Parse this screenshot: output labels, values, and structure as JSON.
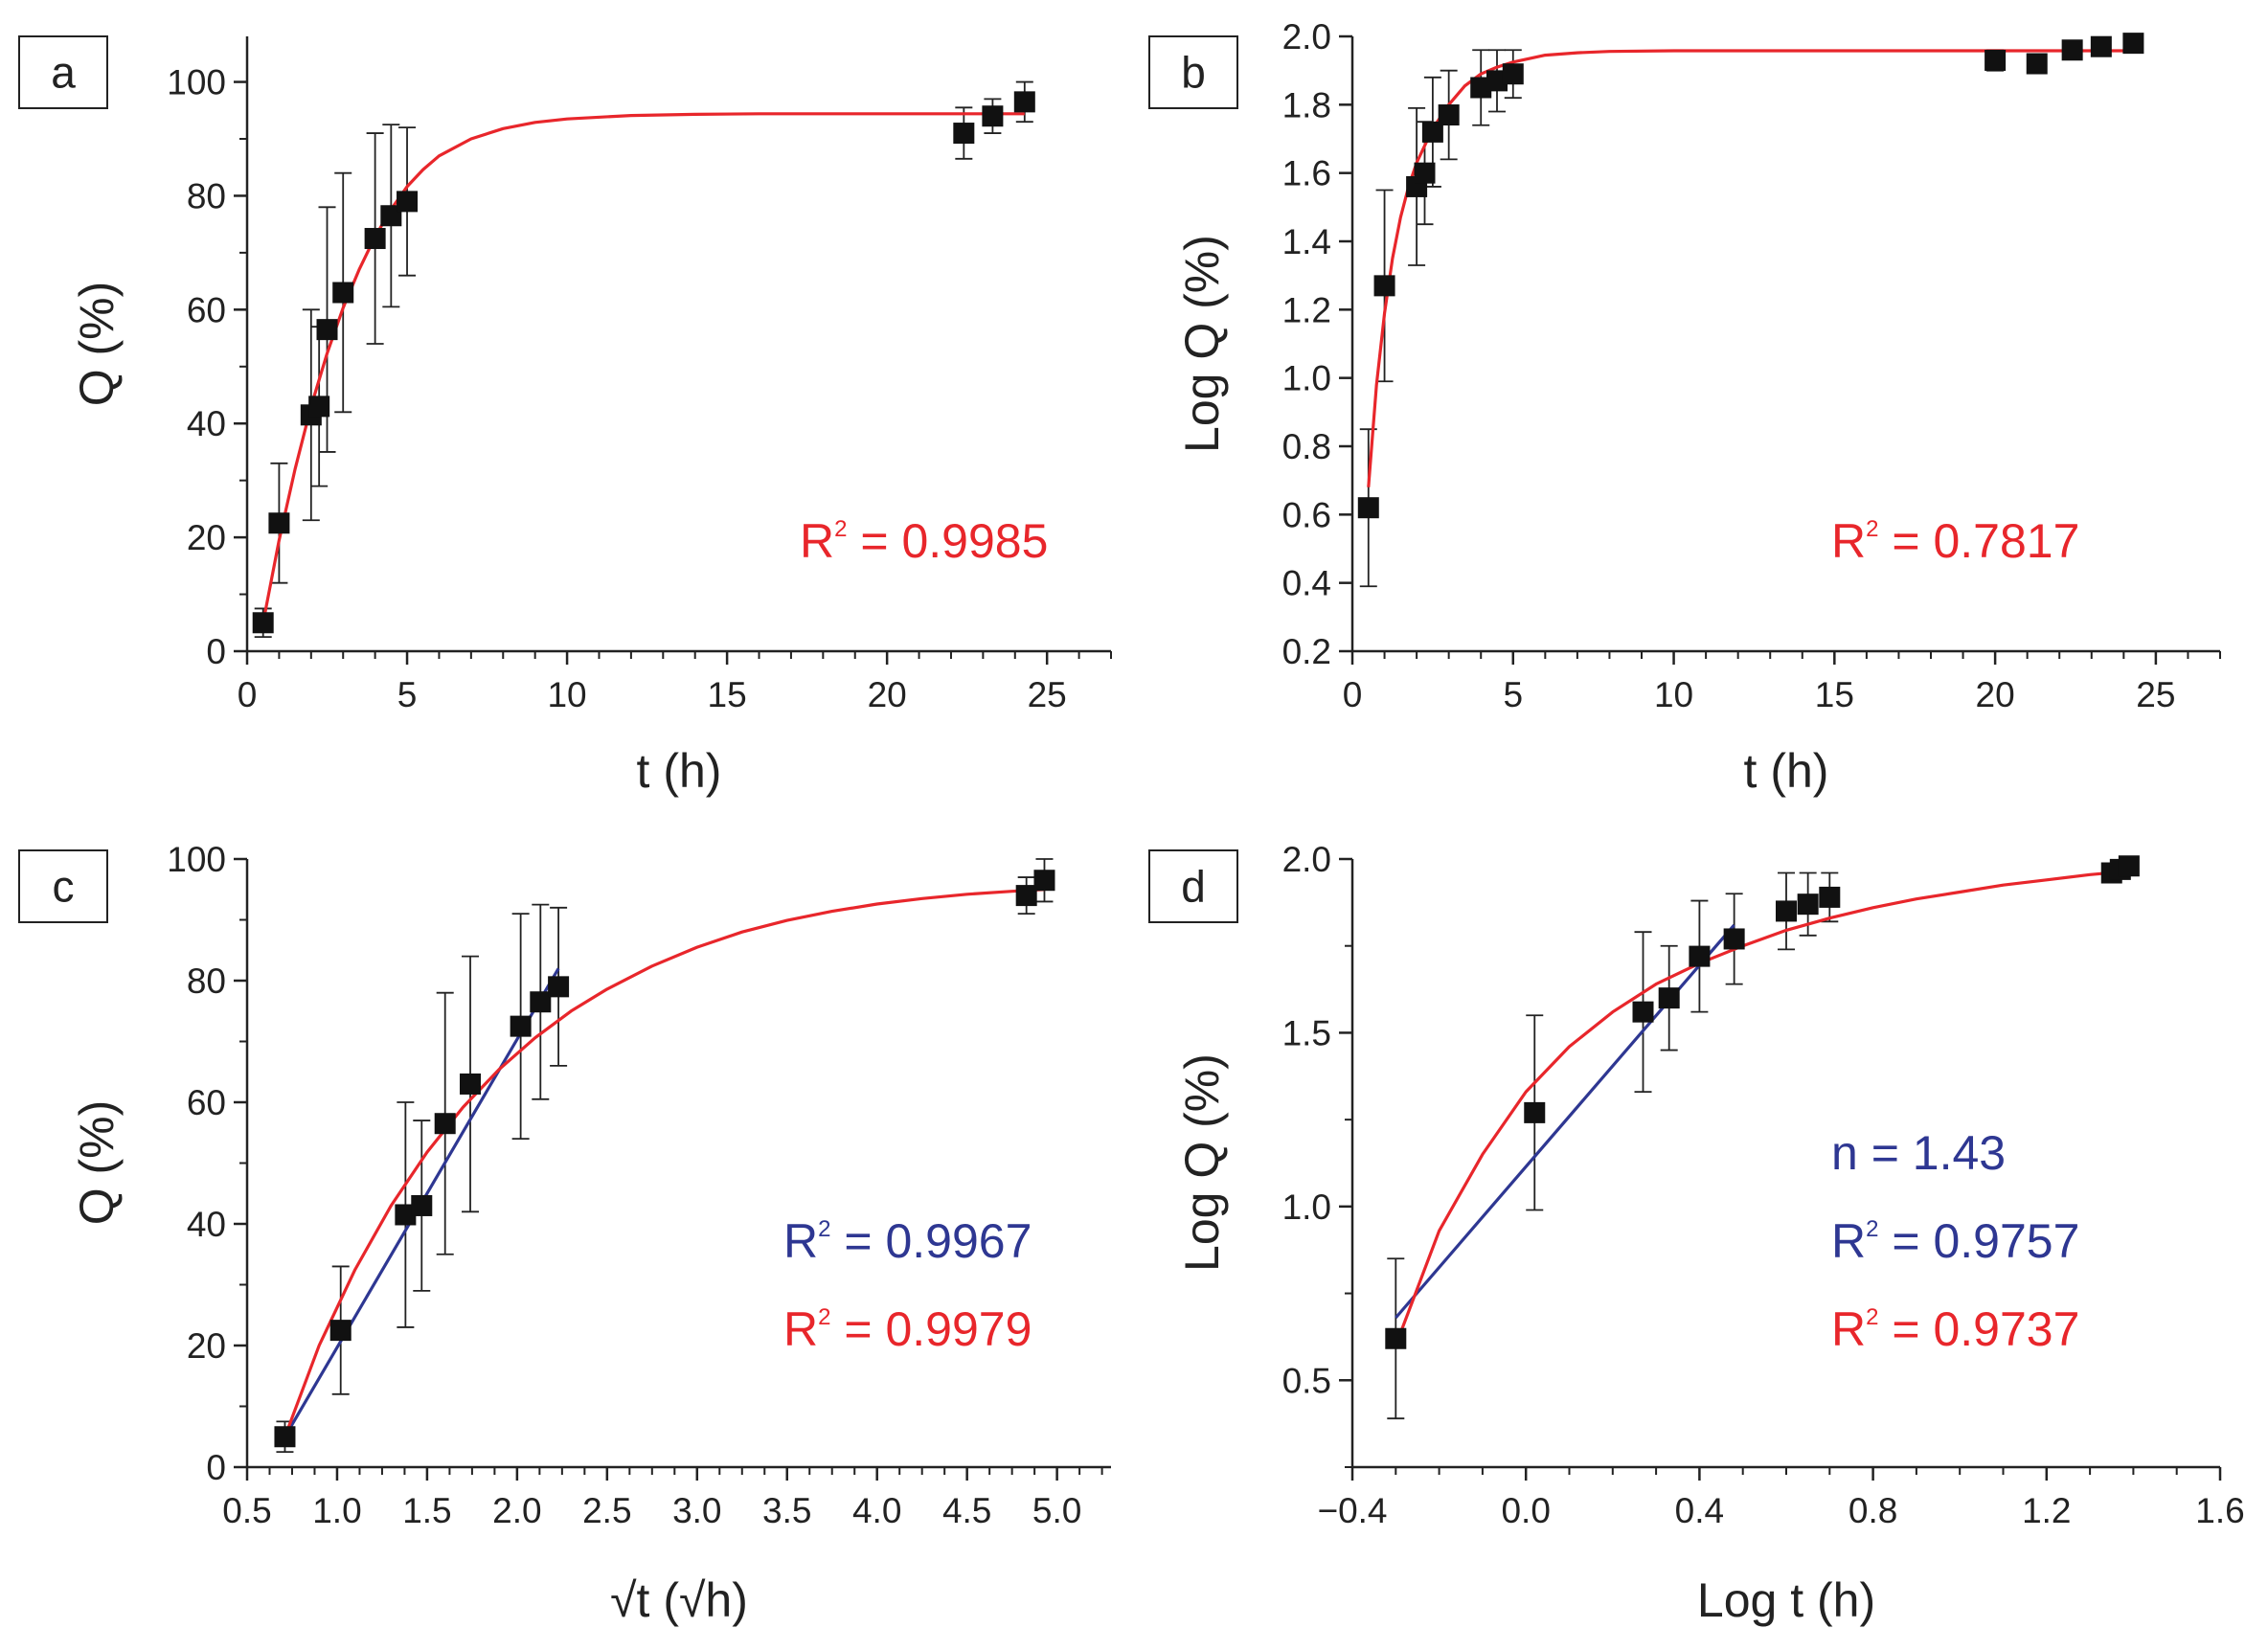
{
  "chart_data": [
    {
      "type": "scatter",
      "panel_label": "a",
      "xlabel": "t (h)",
      "ylabel": "Q (%)",
      "xlim": [
        0,
        27
      ],
      "ylim": [
        0,
        108
      ],
      "xticks": [
        0,
        5,
        10,
        15,
        20,
        25
      ],
      "yticks": [
        0,
        20,
        40,
        60,
        80,
        100
      ],
      "xtick_labels": [
        "0",
        "5",
        "10",
        "15",
        "20",
        "25"
      ],
      "ytick_labels": [
        "0",
        "20",
        "40",
        "60",
        "80",
        "100"
      ],
      "points": [
        {
          "x": 0.5,
          "y": 5,
          "err": 2.5
        },
        {
          "x": 1,
          "y": 22.5,
          "err": 10.5
        },
        {
          "x": 2,
          "y": 41.5,
          "err": 18.5
        },
        {
          "x": 2.25,
          "y": 43,
          "err": 14
        },
        {
          "x": 2.5,
          "y": 56.5,
          "err": 21.5
        },
        {
          "x": 3,
          "y": 63,
          "err": 21
        },
        {
          "x": 4,
          "y": 72.5,
          "err": 18.5
        },
        {
          "x": 4.5,
          "y": 76.5,
          "err": 16
        },
        {
          "x": 5,
          "y": 79,
          "err": 13
        },
        {
          "x": 22.4,
          "y": 91,
          "err": 4.5
        },
        {
          "x": 23.3,
          "y": 94,
          "err": 3
        },
        {
          "x": 24.3,
          "y": 96.5,
          "err": 3.5
        }
      ],
      "fit_curves": [
        {
          "name": "fit",
          "color": "#e8262b",
          "x": [
            0.5,
            1,
            1.5,
            2,
            2.5,
            3,
            3.5,
            4,
            4.5,
            5,
            5.5,
            6,
            7,
            8,
            9,
            10,
            12,
            14,
            16,
            18,
            20,
            22,
            24.3
          ],
          "y": [
            5,
            19.5,
            32,
            43,
            52.3,
            60.3,
            67,
            72.8,
            77.6,
            81.6,
            84.6,
            87,
            90,
            91.8,
            92.9,
            93.5,
            94.1,
            94.3,
            94.4,
            94.4,
            94.4,
            94.4,
            94.4
          ]
        }
      ],
      "annotations": [
        {
          "label": "R",
          "sup": "2",
          "text": " = 0.9985",
          "color": "#e8262b"
        }
      ]
    },
    {
      "type": "scatter",
      "panel_label": "b",
      "xlabel": "t (h)",
      "ylabel": "Log Q (%)",
      "xlim": [
        0,
        27
      ],
      "ylim": [
        0.2,
        2.0
      ],
      "xticks": [
        0,
        5,
        10,
        15,
        20,
        25
      ],
      "yticks": [
        0.2,
        0.4,
        0.6,
        0.8,
        1.0,
        1.2,
        1.4,
        1.6,
        1.8,
        2.0
      ],
      "xtick_labels": [
        "0",
        "5",
        "10",
        "15",
        "20",
        "25"
      ],
      "ytick_labels": [
        "0.2",
        "0.4",
        "0.6",
        "0.8",
        "1.0",
        "1.2",
        "1.4",
        "1.6",
        "1.8",
        "2.0"
      ],
      "points": [
        {
          "x": 0.5,
          "y": 0.62,
          "err": 0.23
        },
        {
          "x": 1,
          "y": 1.27,
          "err": 0.28
        },
        {
          "x": 2,
          "y": 1.56,
          "err": 0.23
        },
        {
          "x": 2.25,
          "y": 1.6,
          "err": 0.15
        },
        {
          "x": 2.5,
          "y": 1.72,
          "err": 0.16
        },
        {
          "x": 3,
          "y": 1.77,
          "err": 0.13
        },
        {
          "x": 4,
          "y": 1.85,
          "err": 0.11
        },
        {
          "x": 4.5,
          "y": 1.87,
          "err": 0.09
        },
        {
          "x": 5,
          "y": 1.89,
          "err": 0.07
        },
        {
          "x": 20,
          "y": 1.93,
          "err": 0.03
        },
        {
          "x": 21.3,
          "y": 1.92,
          "err": 0.02
        },
        {
          "x": 22.4,
          "y": 1.96,
          "err": 0.02
        },
        {
          "x": 23.3,
          "y": 1.97,
          "err": 0.01
        },
        {
          "x": 24.3,
          "y": 1.98,
          "err": 0.01
        }
      ],
      "fit_curves": [
        {
          "name": "fit",
          "color": "#e8262b",
          "x": [
            0.5,
            0.75,
            1,
            1.25,
            1.5,
            1.75,
            2,
            2.5,
            3,
            3.5,
            4,
            4.5,
            5,
            6,
            7,
            8,
            10,
            14,
            18,
            22,
            24.3
          ],
          "y": [
            0.68,
            0.98,
            1.19,
            1.35,
            1.47,
            1.56,
            1.63,
            1.73,
            1.8,
            1.855,
            1.89,
            1.91,
            1.925,
            1.945,
            1.952,
            1.956,
            1.958,
            1.958,
            1.958,
            1.958,
            1.958
          ]
        }
      ],
      "annotations": [
        {
          "label": "R",
          "sup": "2",
          "text": " = 0.7817",
          "color": "#e8262b"
        }
      ]
    },
    {
      "type": "scatter",
      "panel_label": "c",
      "xlabel": "√t (√h)",
      "ylabel": "Q (%)",
      "xlim": [
        0.5,
        5.3
      ],
      "ylim": [
        0,
        100
      ],
      "xticks": [
        0.5,
        1.0,
        1.5,
        2.0,
        2.5,
        3.0,
        3.5,
        4.0,
        4.5,
        5.0
      ],
      "yticks": [
        0,
        20,
        40,
        60,
        80,
        100
      ],
      "xtick_labels": [
        "0.5",
        "1.0",
        "1.5",
        "2.0",
        "2.5",
        "3.0",
        "3.5",
        "4.0",
        "4.5",
        "5.0"
      ],
      "ytick_labels": [
        "0",
        "20",
        "40",
        "60",
        "80",
        "100"
      ],
      "points": [
        {
          "x": 0.71,
          "y": 5,
          "err": 2.5
        },
        {
          "x": 1.02,
          "y": 22.5,
          "err": 10.5
        },
        {
          "x": 1.38,
          "y": 41.5,
          "err": 18.5
        },
        {
          "x": 1.47,
          "y": 43,
          "err": 14
        },
        {
          "x": 1.6,
          "y": 56.5,
          "err": 21.5
        },
        {
          "x": 1.74,
          "y": 63,
          "err": 21
        },
        {
          "x": 2.02,
          "y": 72.5,
          "err": 18.5
        },
        {
          "x": 2.13,
          "y": 76.5,
          "err": 16
        },
        {
          "x": 2.23,
          "y": 79,
          "err": 13
        },
        {
          "x": 4.83,
          "y": 94,
          "err": 3
        },
        {
          "x": 4.93,
          "y": 96.5,
          "err": 3.5
        }
      ],
      "fit_curves": [
        {
          "name": "linear fit",
          "color": "#2e3792",
          "x": [
            0.71,
            2.23
          ],
          "y": [
            5,
            82
          ]
        },
        {
          "name": "fit",
          "color": "#e8262b",
          "x": [
            0.71,
            0.9,
            1.1,
            1.3,
            1.5,
            1.7,
            1.9,
            2.1,
            2.3,
            2.5,
            2.75,
            3.0,
            3.25,
            3.5,
            3.75,
            4.0,
            4.25,
            4.5,
            4.75,
            4.93
          ],
          "y": [
            5,
            20,
            32.5,
            43,
            51.8,
            59.2,
            65.4,
            70.6,
            75,
            78.6,
            82.4,
            85.5,
            88,
            89.9,
            91.4,
            92.6,
            93.5,
            94.2,
            94.7,
            95
          ]
        }
      ],
      "annotations": [
        {
          "label": "R",
          "sup": "2",
          "text": " = 0.9967",
          "color": "#2e3792"
        },
        {
          "label": "R",
          "sup": "2",
          "text": " = 0.9979",
          "color": "#e8262b"
        }
      ]
    },
    {
      "type": "scatter",
      "panel_label": "d",
      "xlabel": "Log t (h)",
      "ylabel": "Log Q (%)",
      "xlim": [
        -0.4,
        1.6
      ],
      "ylim": [
        0.25,
        2.0
      ],
      "xticks": [
        -0.4,
        0.0,
        0.4,
        0.8,
        1.2,
        1.6
      ],
      "yticks": [
        0.5,
        1.0,
        1.5,
        2.0
      ],
      "xtick_labels": [
        "−0.4",
        "0.0",
        "0.4",
        "0.8",
        "1.2",
        "1.6"
      ],
      "ytick_labels": [
        "0.5",
        "1.0",
        "1.5",
        "2.0"
      ],
      "points": [
        {
          "x": -0.3,
          "y": 0.62,
          "err": 0.23
        },
        {
          "x": 0.02,
          "y": 1.27,
          "err": 0.28
        },
        {
          "x": 0.27,
          "y": 1.56,
          "err": 0.23
        },
        {
          "x": 0.33,
          "y": 1.6,
          "err": 0.15
        },
        {
          "x": 0.4,
          "y": 1.72,
          "err": 0.16
        },
        {
          "x": 0.48,
          "y": 1.77,
          "err": 0.13
        },
        {
          "x": 0.6,
          "y": 1.85,
          "err": 0.11
        },
        {
          "x": 0.65,
          "y": 1.87,
          "err": 0.09
        },
        {
          "x": 0.7,
          "y": 1.89,
          "err": 0.07
        },
        {
          "x": 1.35,
          "y": 1.96,
          "err": 0.02
        },
        {
          "x": 1.37,
          "y": 1.97,
          "err": 0.01
        },
        {
          "x": 1.39,
          "y": 1.98,
          "err": 0.01
        }
      ],
      "fit_curves": [
        {
          "name": "linear fit",
          "color": "#2e3792",
          "x": [
            -0.3,
            0.48
          ],
          "y": [
            0.68,
            1.81
          ]
        },
        {
          "name": "fit",
          "color": "#e8262b",
          "x": [
            -0.3,
            -0.2,
            -0.1,
            0.0,
            0.1,
            0.2,
            0.3,
            0.4,
            0.5,
            0.6,
            0.7,
            0.8,
            0.9,
            1.0,
            1.1,
            1.2,
            1.3,
            1.39
          ],
          "y": [
            0.6,
            0.93,
            1.15,
            1.33,
            1.46,
            1.56,
            1.64,
            1.7,
            1.75,
            1.795,
            1.83,
            1.86,
            1.885,
            1.905,
            1.925,
            1.94,
            1.955,
            1.965
          ]
        }
      ],
      "annotations": [
        {
          "label": "n = 1.43",
          "sup": "",
          "text": "",
          "color": "#2e3792"
        },
        {
          "label": "R",
          "sup": "2",
          "text": " = 0.9757",
          "color": "#2e3792"
        },
        {
          "label": "R",
          "sup": "2",
          "text": " = 0.9737",
          "color": "#e8262b"
        }
      ]
    }
  ]
}
